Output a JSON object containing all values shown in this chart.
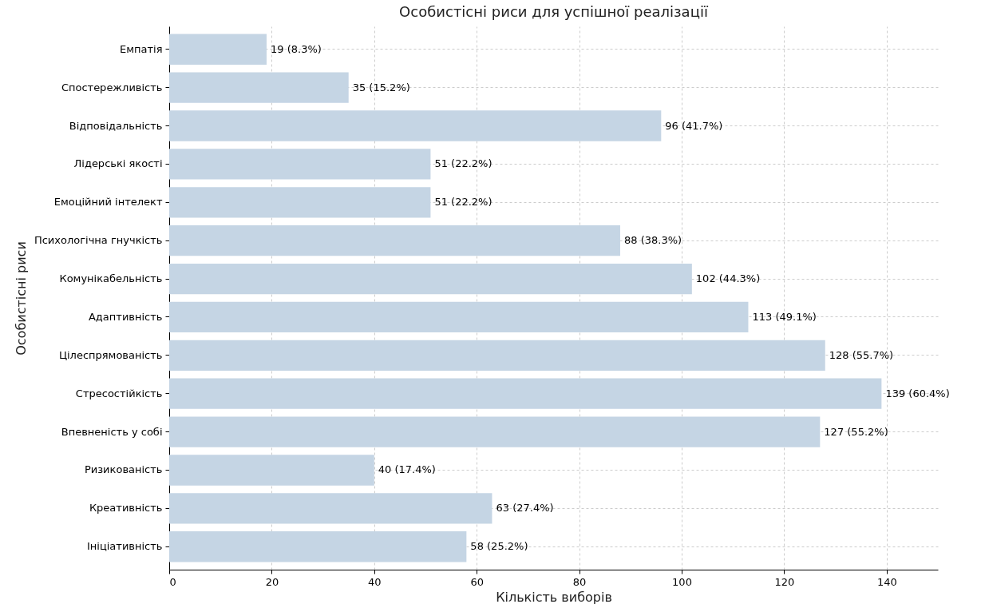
{
  "chart_data": {
    "type": "bar",
    "orientation": "horizontal",
    "title": "Особистісні риси для успішної реалізації",
    "xlabel": "Кількість виборів",
    "ylabel": "Особистісні риси",
    "categories": [
      "Емпатія",
      "Спостережливість",
      "Відповідальність",
      "Лідерські якості",
      "Емоційний інтелект",
      "Психологічна гнучкість",
      "Комунікабельність",
      "Адаптивність",
      "Цілеспрямованість",
      "Стресостійкість",
      "Впевненість у собі",
      "Ризикованість",
      "Креативність",
      "Ініціативність"
    ],
    "values": [
      19,
      35,
      96,
      51,
      51,
      88,
      102,
      113,
      128,
      139,
      127,
      40,
      63,
      58
    ],
    "value_labels": [
      "19 (8.3%)",
      "35 (15.2%)",
      "96 (41.7%)",
      "51 (22.2%)",
      "51 (22.2%)",
      "88 (38.3%)",
      "102 (44.3%)",
      "113 (49.1%)",
      "128 (55.7%)",
      "139 (60.4%)",
      "127 (55.2%)",
      "40 (17.4%)",
      "63 (27.4%)",
      "58 (25.2%)"
    ],
    "color": "#c5d5e4",
    "xlim": [
      0,
      150
    ],
    "xticks": [
      0,
      20,
      40,
      60,
      80,
      100,
      120,
      140
    ],
    "grid": true
  }
}
